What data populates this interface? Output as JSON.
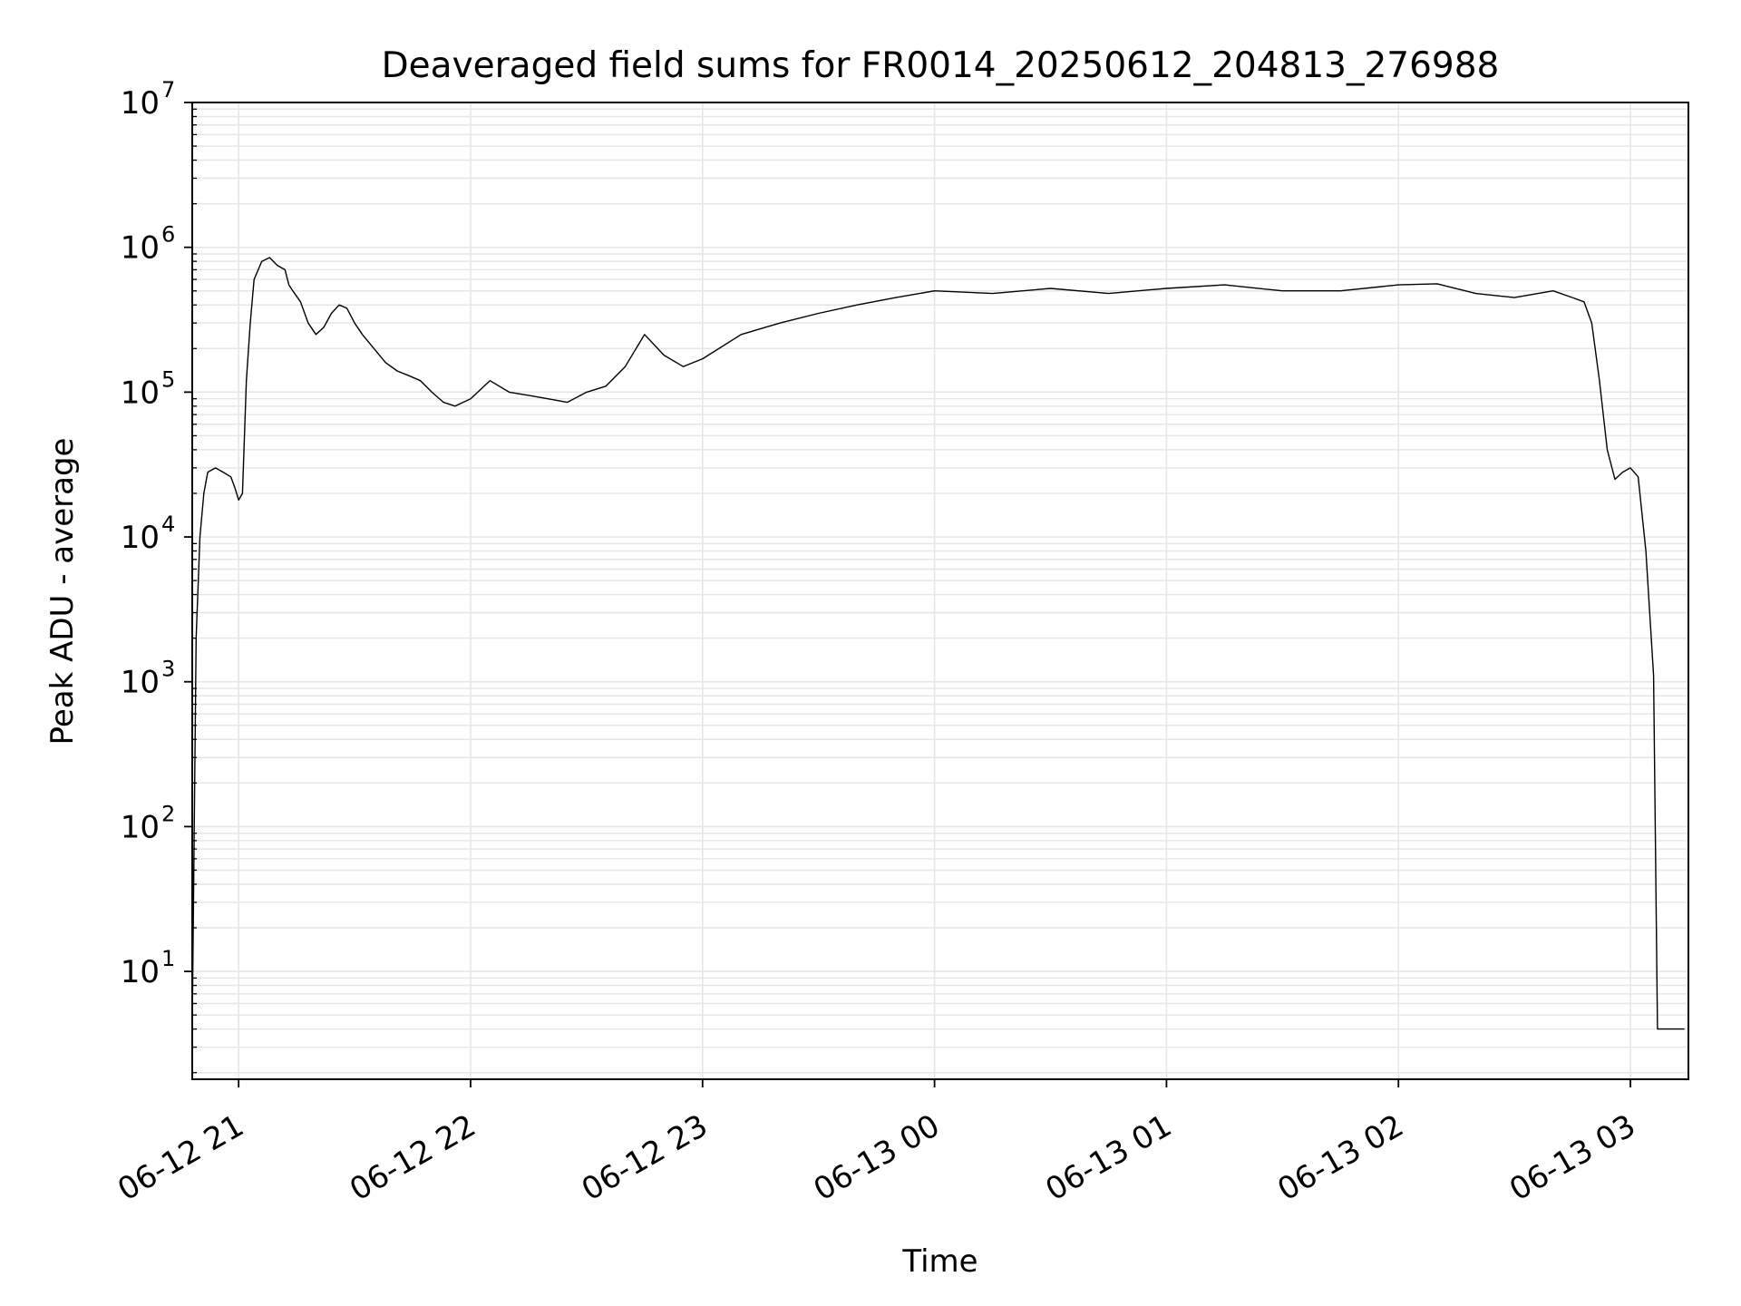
{
  "chart_data": {
    "type": "line",
    "title": "Deaveraged field sums for FR0014_20250612_204813_276988",
    "xlabel": "Time",
    "ylabel": "Peak ADU - average",
    "yscale": "log",
    "ylim": [
      1.8,
      10000000
    ],
    "xlim": [
      "2025-06-12 20:48",
      "2025-06-13 03:15"
    ],
    "grid": true,
    "line_color": "#000000",
    "grid_color": "#e6e6e6",
    "x_ticks": [
      {
        "label": "06-12 21",
        "time": "2025-06-12 21:00"
      },
      {
        "label": "06-12 22",
        "time": "2025-06-12 22:00"
      },
      {
        "label": "06-12 23",
        "time": "2025-06-12 23:00"
      },
      {
        "label": "06-13 00",
        "time": "2025-06-13 00:00"
      },
      {
        "label": "06-13 01",
        "time": "2025-06-13 01:00"
      },
      {
        "label": "06-13 02",
        "time": "2025-06-13 02:00"
      },
      {
        "label": "06-13 03",
        "time": "2025-06-13 03:00"
      }
    ],
    "y_ticks": [
      {
        "base": "10",
        "exp": "1",
        "value": 10
      },
      {
        "base": "10",
        "exp": "2",
        "value": 100
      },
      {
        "base": "10",
        "exp": "3",
        "value": 1000
      },
      {
        "base": "10",
        "exp": "4",
        "value": 10000
      },
      {
        "base": "10",
        "exp": "5",
        "value": 100000
      },
      {
        "base": "10",
        "exp": "6",
        "value": 1000000
      },
      {
        "base": "10",
        "exp": "7",
        "value": 10000000
      }
    ],
    "series": [
      {
        "x": [
          "2025-06-12 20:48",
          "2025-06-12 20:49",
          "2025-06-12 20:50",
          "2025-06-12 20:51",
          "2025-06-12 20:52",
          "2025-06-12 20:54",
          "2025-06-12 20:56",
          "2025-06-12 20:58",
          "2025-06-12 20:59",
          "2025-06-12 21:00",
          "2025-06-12 21:01",
          "2025-06-12 21:02",
          "2025-06-12 21:03",
          "2025-06-12 21:04",
          "2025-06-12 21:06",
          "2025-06-12 21:08",
          "2025-06-12 21:10",
          "2025-06-12 21:12",
          "2025-06-12 21:13",
          "2025-06-12 21:14",
          "2025-06-12 21:16",
          "2025-06-12 21:18",
          "2025-06-12 21:20",
          "2025-06-12 21:22",
          "2025-06-12 21:24",
          "2025-06-12 21:26",
          "2025-06-12 21:28",
          "2025-06-12 21:30",
          "2025-06-12 21:32",
          "2025-06-12 21:35",
          "2025-06-12 21:38",
          "2025-06-12 21:41",
          "2025-06-12 21:44",
          "2025-06-12 21:47",
          "2025-06-12 21:50",
          "2025-06-12 21:53",
          "2025-06-12 21:56",
          "2025-06-12 22:00",
          "2025-06-12 22:05",
          "2025-06-12 22:10",
          "2025-06-12 22:15",
          "2025-06-12 22:20",
          "2025-06-12 22:25",
          "2025-06-12 22:30",
          "2025-06-12 22:35",
          "2025-06-12 22:40",
          "2025-06-12 22:45",
          "2025-06-12 22:50",
          "2025-06-12 22:55",
          "2025-06-12 23:00",
          "2025-06-12 23:10",
          "2025-06-12 23:20",
          "2025-06-12 23:30",
          "2025-06-12 23:40",
          "2025-06-12 23:50",
          "2025-06-13 00:00",
          "2025-06-13 00:15",
          "2025-06-13 00:30",
          "2025-06-13 00:45",
          "2025-06-13 01:00",
          "2025-06-13 01:15",
          "2025-06-13 01:30",
          "2025-06-13 01:45",
          "2025-06-13 02:00",
          "2025-06-13 02:10",
          "2025-06-13 02:20",
          "2025-06-13 02:30",
          "2025-06-13 02:40",
          "2025-06-13 02:45",
          "2025-06-13 02:48",
          "2025-06-13 02:50",
          "2025-06-13 02:52",
          "2025-06-13 02:54",
          "2025-06-13 02:56",
          "2025-06-13 02:58",
          "2025-06-13 03:00",
          "2025-06-13 03:02",
          "2025-06-13 03:04",
          "2025-06-13 03:06",
          "2025-06-13 03:07",
          "2025-06-13 03:08",
          "2025-06-13 03:09",
          "2025-06-13 03:10",
          "2025-06-13 03:12",
          "2025-06-13 03:14"
        ],
        "y": [
          4,
          2000,
          10000,
          20000,
          28000,
          30000,
          28000,
          26000,
          22000,
          18000,
          20000,
          120000,
          300000,
          600000,
          800000,
          850000,
          750000,
          700000,
          550000,
          500000,
          420000,
          300000,
          250000,
          280000,
          350000,
          400000,
          380000,
          300000,
          250000,
          200000,
          160000,
          140000,
          130000,
          120000,
          100000,
          85000,
          80000,
          90000,
          120000,
          100000,
          95000,
          90000,
          85000,
          100000,
          110000,
          150000,
          250000,
          180000,
          150000,
          170000,
          250000,
          300000,
          350000,
          400000,
          450000,
          500000,
          480000,
          520000,
          480000,
          520000,
          550000,
          500000,
          500000,
          550000,
          560000,
          480000,
          450000,
          500000,
          450000,
          420000,
          300000,
          120000,
          40000,
          25000,
          28000,
          30000,
          26000,
          8000,
          1100,
          4,
          4,
          4,
          4,
          4,
          4
        ]
      }
    ]
  }
}
